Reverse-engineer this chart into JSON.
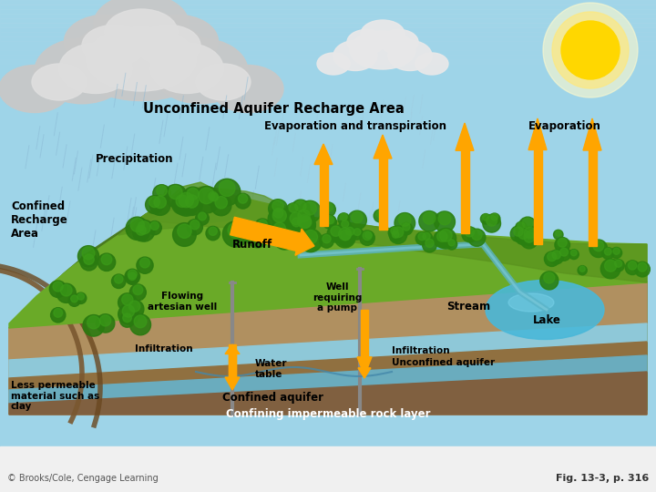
{
  "figsize": [
    7.2,
    5.4
  ],
  "dpi": 100,
  "labels": {
    "unconfined_recharge": "Unconfined Aquifer Recharge Area",
    "evap_transp": "Evaporation and transpiration",
    "evaporation": "Evaporation",
    "precipitation": "Precipitation",
    "confined_recharge": "Confined\nRecharge\nArea",
    "runoff": "Runoff",
    "flowing_artesian": "Flowing\nartesian well",
    "well_pump": "Well\nrequiring\na pump",
    "stream": "Stream",
    "infiltration1": "Infiltration",
    "water_table": "Water\ntable",
    "lake": "Lake",
    "infiltration2": "Infiltration",
    "unconfined_aquifer": "Unconfined aquifer",
    "confined_aquifer": "Confined aquifer",
    "confining_layer": "Confining impermeable rock layer",
    "less_permeable": "Less permeable\nmaterial such as\nclay",
    "copyright": "© Brooks/Cole, Cengage Learning",
    "fig_ref": "Fig. 13-3, p. 316"
  },
  "sky_color": "#9ed4e8",
  "sun_color": "#FFD700",
  "sun_glow": "#FFFACD",
  "arrow_color": "#FFA500",
  "arrow_color2": "#FFB733",
  "terrain_green_dark": "#4a7a1e",
  "terrain_green_light": "#6aaa28",
  "terrain_green_mid": "#5a921e",
  "brown_soil": "#a07040",
  "brown_dark": "#7a4820",
  "aquifer_blue": "#8ec8d8",
  "confined_aquifer_blue": "#6aacbe",
  "rock_brown": "#8a6040",
  "rock_dark": "#6a4828",
  "lake_blue": "#4ab8d8",
  "stream_blue": "#5ab4c8",
  "white": "#FFFFFF",
  "black": "#000000",
  "label_fs": 8.5,
  "title_fs": 10.5
}
